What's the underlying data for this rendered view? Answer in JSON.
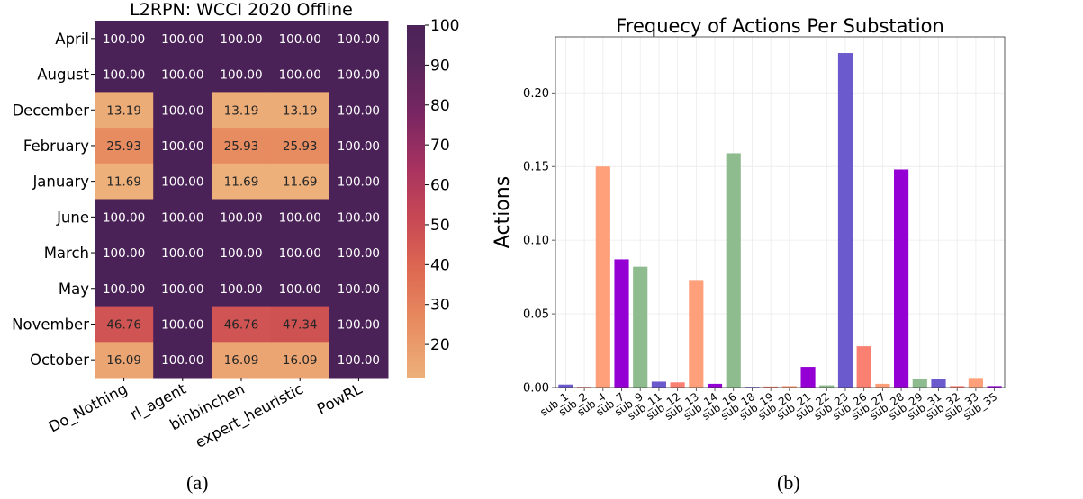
{
  "captions": {
    "a": "(a)",
    "b": "(b)"
  },
  "chart_data": [
    {
      "type": "heatmap",
      "title": "L2RPN: WCCI 2020 Offline",
      "rows": [
        "April",
        "August",
        "December",
        "February",
        "January",
        "June",
        "March",
        "May",
        "November",
        "October"
      ],
      "columns": [
        "Do_Nothing",
        "rl_agent",
        "binbinchen",
        "expert_heuristic",
        "PowRL"
      ],
      "values": [
        [
          "100.00",
          "100.00",
          "100.00",
          "100.00",
          "100.00"
        ],
        [
          "100.00",
          "100.00",
          "100.00",
          "100.00",
          "100.00"
        ],
        [
          "13.19",
          "100.00",
          "13.19",
          "13.19",
          "100.00"
        ],
        [
          "25.93",
          "100.00",
          "25.93",
          "25.93",
          "100.00"
        ],
        [
          "11.69",
          "100.00",
          "11.69",
          "11.69",
          "100.00"
        ],
        [
          "100.00",
          "100.00",
          "100.00",
          "100.00",
          "100.00"
        ],
        [
          "100.00",
          "100.00",
          "100.00",
          "100.00",
          "100.00"
        ],
        [
          "100.00",
          "100.00",
          "100.00",
          "100.00",
          "100.00"
        ],
        [
          "46.76",
          "100.00",
          "46.76",
          "47.34",
          "100.00"
        ],
        [
          "16.09",
          "100.00",
          "16.09",
          "16.09",
          "100.00"
        ]
      ],
      "colorbar": {
        "min": 11.69,
        "max": 100,
        "ticks": [
          "100",
          "90",
          "80",
          "70",
          "60",
          "50",
          "40",
          "30",
          "20"
        ],
        "colormap": "flare"
      }
    },
    {
      "type": "bar",
      "title": "Frequecy of Actions Per Substation",
      "xlabel": "",
      "ylabel": "Actions",
      "ylim": [
        0,
        0.238
      ],
      "yticks": [
        "0.00",
        "0.05",
        "0.10",
        "0.15",
        "0.20"
      ],
      "grid": true,
      "categories": [
        "sub_1",
        "sub_2",
        "sub_4",
        "sub_7",
        "sub_9",
        "sub_11",
        "sub_12",
        "sub_13",
        "sub_14",
        "sub_16",
        "sub_18",
        "sub_19",
        "sub_20",
        "sub_21",
        "sub_22",
        "sub_23",
        "sub_26",
        "sub_27",
        "sub_28",
        "sub_29",
        "sub_31",
        "sub_32",
        "sub_33",
        "sub_35"
      ],
      "values": [
        0.002,
        0.0005,
        0.15,
        0.087,
        0.082,
        0.004,
        0.0035,
        0.073,
        0.0025,
        0.159,
        0.0005,
        0.0007,
        0.001,
        0.014,
        0.0015,
        0.227,
        0.028,
        0.0025,
        0.148,
        0.006,
        0.006,
        0.001,
        0.0065,
        0.001
      ],
      "colors": [
        "#6a5acd",
        "#fa8072",
        "#ffa07a",
        "#9400d3",
        "#8fbc8f",
        "#6a5acd",
        "#fa8072",
        "#ffa07a",
        "#9400d3",
        "#8fbc8f",
        "#6a5acd",
        "#fa8072",
        "#ffa07a",
        "#9400d3",
        "#8fbc8f",
        "#6a5acd",
        "#fa8072",
        "#ffa07a",
        "#9400d3",
        "#8fbc8f",
        "#6a5acd",
        "#fa8072",
        "#ffa07a",
        "#9400d3"
      ]
    }
  ]
}
